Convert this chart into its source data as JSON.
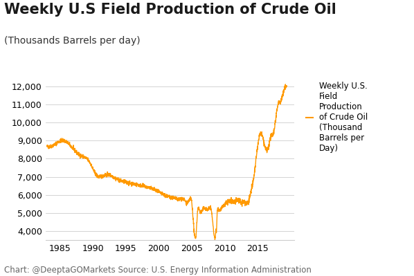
{
  "title": "Weekly U.S Field Production of Crude Oil",
  "subtitle": "(Thousands Barrels per day)",
  "line_color": "#FF9900",
  "line_width": 1.0,
  "legend_label": "Weekly U.S.\nField\nProduction\nof Crude Oil\n(Thousand\nBarrels per\nDay)",
  "source_text": "Chart: @DeeptaGOMarkets Source: U.S. Energy Information Administration",
  "ylim": [
    3500,
    12500
  ],
  "yticks": [
    4000,
    5000,
    6000,
    7000,
    8000,
    9000,
    10000,
    11000,
    12000
  ],
  "xtick_years": [
    1985,
    1990,
    1995,
    2000,
    2005,
    2010,
    2015
  ],
  "xlim_start": 1982.8,
  "xlim_end": 2020.5,
  "background_color": "#FFFFFF",
  "grid_color": "#CCCCCC",
  "title_fontsize": 15,
  "subtitle_fontsize": 10,
  "tick_fontsize": 9,
  "legend_fontsize": 8.5,
  "source_fontsize": 8.5,
  "key_years": [
    1983.0,
    1984.0,
    1985.5,
    1986.5,
    1988.0,
    1989.5,
    1990.5,
    1991.5,
    1992.5,
    1993.5,
    1994.5,
    1995.5,
    1996.5,
    1997.5,
    1998.5,
    1999.5,
    2000.5,
    2001.5,
    2002.5,
    2003.0,
    2003.5,
    2004.0,
    2004.5,
    2005.0,
    2005.65,
    2005.85,
    2006.2,
    2006.8,
    2007.5,
    2008.0,
    2008.65,
    2008.85,
    2009.1,
    2009.5,
    2010.0,
    2010.5,
    2011.0,
    2011.5,
    2012.0,
    2012.5,
    2013.0,
    2013.5,
    2014.0,
    2014.5,
    2015.0,
    2015.5,
    2016.0,
    2016.5,
    2017.0,
    2017.5,
    2018.0,
    2018.5,
    2019.0,
    2019.3
  ],
  "key_values": [
    8680,
    8750,
    9000,
    8750,
    8200,
    7800,
    7100,
    7050,
    7100,
    6900,
    6750,
    6650,
    6580,
    6500,
    6400,
    6250,
    6050,
    5900,
    5800,
    5750,
    5800,
    5650,
    5600,
    5550,
    3820,
    5000,
    5100,
    5250,
    5200,
    5050,
    3970,
    5100,
    5200,
    5250,
    5450,
    5600,
    5650,
    5600,
    5700,
    5600,
    5600,
    5600,
    6200,
    7200,
    8700,
    9400,
    8800,
    8500,
    9200,
    9600,
    10900,
    11200,
    11800,
    12000
  ]
}
